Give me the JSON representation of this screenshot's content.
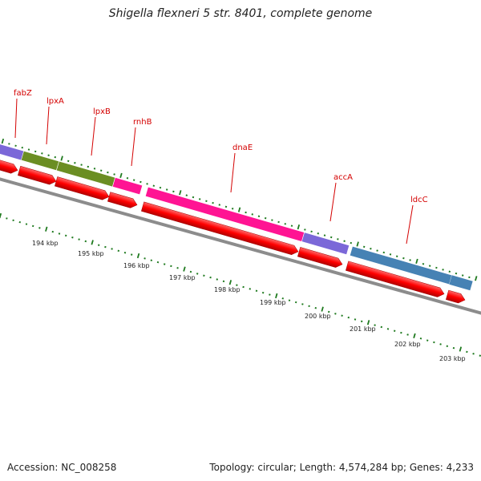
{
  "title": "Shigella flexneri 5 str. 8401, complete genome",
  "footer": {
    "accession": "Accession: NC_008258",
    "summary": "Topology: circular; Length: 4,574,284 bp; Genes: 4,233"
  },
  "colors": {
    "backbone": "#8c8c8c",
    "tick": "#1f7a1f",
    "cds": "#ff0000",
    "label": "#d40000"
  },
  "kbp_labels": [
    "194 kbp",
    "195 kbp",
    "196 kbp",
    "197 kbp",
    "198 kbp",
    "199 kbp",
    "200 kbp",
    "201 kbp",
    "202 kbp",
    "203 kbp"
  ],
  "genes": [
    {
      "name": "fabZ",
      "color": "#7b68d8"
    },
    {
      "name": "lpxA",
      "color": "#6b8e23"
    },
    {
      "name": "lpxB",
      "color": "#6b8e23"
    },
    {
      "name": "rnhB",
      "color": "#ff1493"
    },
    {
      "name": "dnaE",
      "color": "#ff1493"
    },
    {
      "name": "accA",
      "color": "#7b68d8"
    },
    {
      "name": "ldcC",
      "color": "#4682b4"
    }
  ]
}
